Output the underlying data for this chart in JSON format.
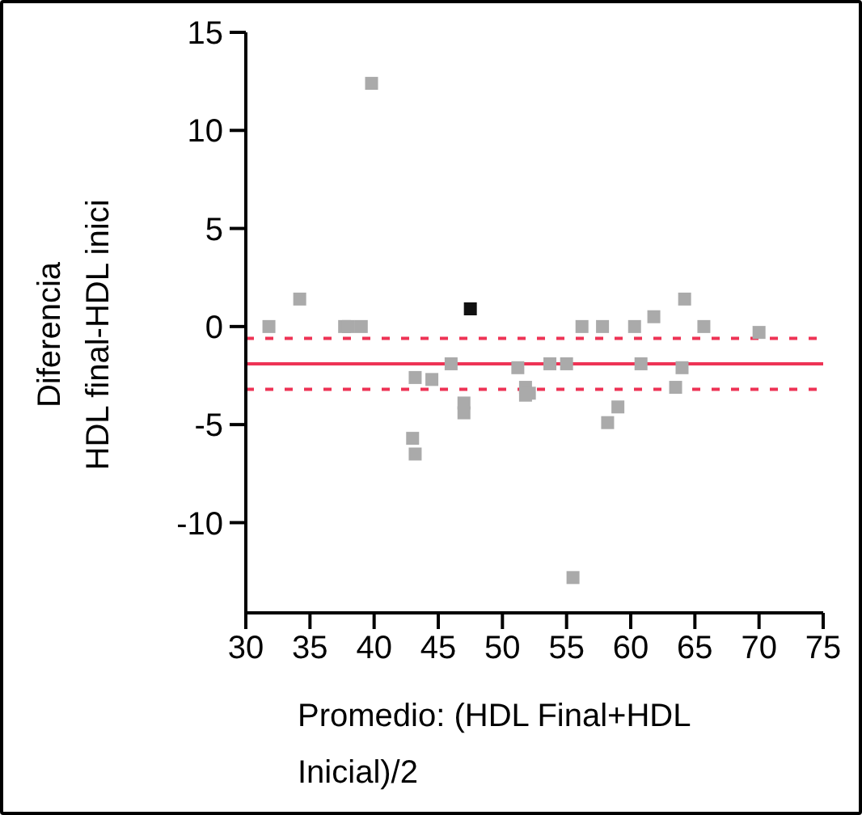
{
  "chart_data": {
    "type": "scatter",
    "xlabel": "Promedio: (HDL Final+HDL\nInicial)/2",
    "ylabel": "Diferencia\nHDL final-HDL inici",
    "x": [
      31.8,
      34.2,
      37.7,
      38.0,
      39.0,
      39.8,
      43.0,
      43.2,
      43.2,
      44.5,
      46.0,
      47.0,
      47.0,
      47.5,
      51.2,
      51.8,
      51.8,
      52.1,
      53.7,
      55.0,
      55.5,
      56.2,
      57.8,
      58.2,
      59.0,
      60.3,
      60.8,
      61.8,
      63.5,
      64.0,
      64.2,
      65.7,
      70.0
    ],
    "values": [
      0,
      1.4,
      0,
      0,
      0,
      12.4,
      -5.7,
      -6.5,
      -2.6,
      -2.7,
      -1.9,
      -3.9,
      -4.4,
      0.9,
      -2.1,
      -3.1,
      -3.5,
      -3.4,
      -1.9,
      -1.9,
      -12.8,
      0,
      0,
      -4.9,
      -4.1,
      0,
      -1.9,
      0.5,
      -3.1,
      -2.1,
      1.4,
      0,
      -0.3
    ],
    "colors": [
      "#aaaaaa",
      "#aaaaaa",
      "#aaaaaa",
      "#aaaaaa",
      "#aaaaaa",
      "#aaaaaa",
      "#aaaaaa",
      "#aaaaaa",
      "#aaaaaa",
      "#aaaaaa",
      "#aaaaaa",
      "#aaaaaa",
      "#aaaaaa",
      "#111111",
      "#aaaaaa",
      "#aaaaaa",
      "#aaaaaa",
      "#aaaaaa",
      "#aaaaaa",
      "#aaaaaa",
      "#aaaaaa",
      "#aaaaaa",
      "#aaaaaa",
      "#aaaaaa",
      "#aaaaaa",
      "#aaaaaa",
      "#aaaaaa",
      "#aaaaaa",
      "#aaaaaa",
      "#aaaaaa",
      "#aaaaaa",
      "#aaaaaa",
      "#aaaaaa"
    ],
    "marker": "square",
    "xlim": [
      30,
      75
    ],
    "xticks": [
      30,
      35,
      40,
      45,
      50,
      55,
      60,
      65,
      70,
      75
    ],
    "ylim": [
      -14.6,
      15
    ],
    "yticks": [
      -10,
      -5,
      0,
      5,
      10,
      15
    ],
    "ref_lines": [
      {
        "axis": "y",
        "value": -1.9,
        "color": "#ee3355",
        "line_style": "solid"
      },
      {
        "axis": "y",
        "value": -0.6,
        "color": "#ee3355",
        "line_style": "dotted"
      },
      {
        "axis": "y",
        "value": -3.2,
        "color": "#ee3355",
        "line_style": "dotted"
      }
    ],
    "grid": false,
    "legend": false
  }
}
